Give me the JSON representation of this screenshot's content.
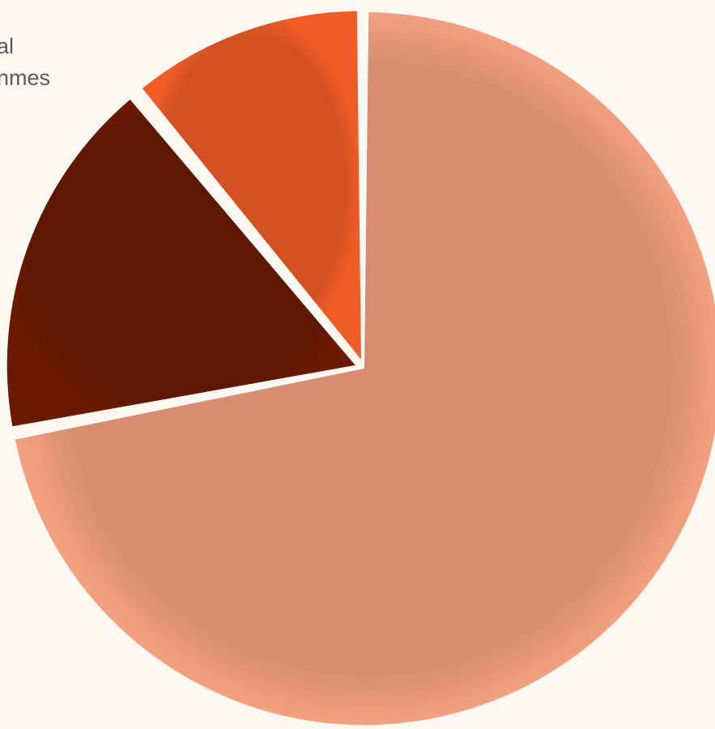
{
  "chart_data": {
    "type": "pie",
    "annotations": [
      "al",
      "nmes"
    ],
    "values": [
      72,
      17,
      11
    ],
    "colors": [
      "#f3a07f",
      "#6a1a02",
      "#f05c26"
    ],
    "start_angle": 0
  }
}
